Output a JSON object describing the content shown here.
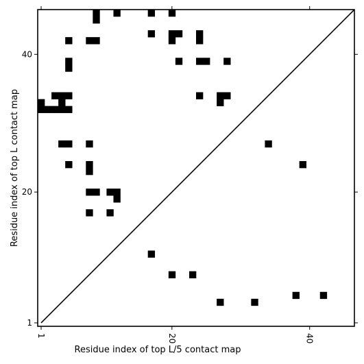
{
  "chart_data": {
    "type": "heatmap",
    "subtype": "contact-map",
    "xlabel": "Residue index of top L/5 contact map",
    "ylabel": "Residue index of top L contact map",
    "xlim": [
      0.5,
      46.5
    ],
    "ylim": [
      0.5,
      46.5
    ],
    "xticks": [
      1,
      20,
      40
    ],
    "yticks": [
      1,
      20,
      40
    ],
    "xtick_labels": [
      "1",
      "20",
      "40"
    ],
    "ytick_labels": [
      "1",
      "20",
      "40"
    ],
    "xtick_rotation": -90,
    "diagonal": {
      "from": [
        1,
        1
      ],
      "to": [
        46,
        46
      ]
    },
    "cell_color": "#000000",
    "background": "#ffffff",
    "grid": false,
    "upper_triangle_top_L": [
      [
        9,
        46
      ],
      [
        9,
        45
      ],
      [
        12,
        46
      ],
      [
        17,
        46
      ],
      [
        20,
        46
      ],
      [
        5,
        42
      ],
      [
        8,
        42
      ],
      [
        9,
        42
      ],
      [
        17,
        43
      ],
      [
        20,
        43
      ],
      [
        21,
        43
      ],
      [
        24,
        43
      ],
      [
        20,
        42
      ],
      [
        24,
        42
      ],
      [
        5,
        39
      ],
      [
        5,
        38
      ],
      [
        21,
        39
      ],
      [
        24,
        39
      ],
      [
        25,
        39
      ],
      [
        28,
        39
      ],
      [
        3,
        34
      ],
      [
        4,
        34
      ],
      [
        5,
        34
      ],
      [
        24,
        34
      ],
      [
        27,
        34
      ],
      [
        28,
        34
      ],
      [
        27,
        33
      ],
      [
        1,
        33
      ],
      [
        1,
        32
      ],
      [
        2,
        32
      ],
      [
        3,
        32
      ],
      [
        4,
        32
      ],
      [
        5,
        32
      ],
      [
        4,
        33
      ],
      [
        4,
        27
      ],
      [
        5,
        27
      ],
      [
        8,
        27
      ],
      [
        34,
        27
      ],
      [
        5,
        24
      ],
      [
        8,
        24
      ],
      [
        8,
        23
      ],
      [
        39,
        24
      ],
      [
        8,
        20
      ],
      [
        9,
        20
      ],
      [
        11,
        20
      ],
      [
        12,
        20
      ],
      [
        12,
        19
      ],
      [
        8,
        17
      ],
      [
        11,
        17
      ]
    ],
    "lower_triangle_top_L5": [
      [
        17,
        11
      ],
      [
        20,
        8
      ],
      [
        23,
        8
      ],
      [
        27,
        4
      ],
      [
        32,
        4
      ],
      [
        38,
        5
      ],
      [
        42,
        5
      ]
    ]
  }
}
